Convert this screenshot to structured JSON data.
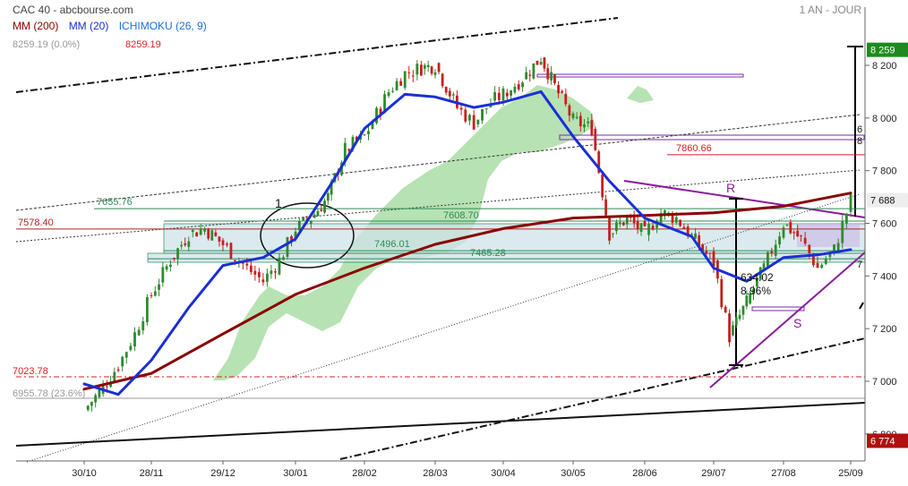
{
  "header": {
    "title": "CAC 40 - abcbourse.com",
    "timeframe": "1 AN - JOUR",
    "indicators": [
      {
        "label": "MM (200)",
        "color": "#8b0000"
      },
      {
        "label": "MM (20)",
        "color": "#1a2fd6"
      },
      {
        "label": "ICHIMOKU (26, 9)",
        "color": "#1a6fd6"
      }
    ],
    "ref_left": "8259.19  (0.0%)",
    "ref_red": "8259.19"
  },
  "chart_data": {
    "type": "candlestick",
    "x_ticks": [
      "30/10",
      "28/11",
      "29/12",
      "30/01",
      "28/02",
      "28/03",
      "30/04",
      "30/05",
      "28/06",
      "29/07",
      "27/08",
      "25/09"
    ],
    "y_ticks": [
      6800,
      7000,
      7200,
      7400,
      7600,
      7800,
      8000,
      8200
    ],
    "y_tick_labels": [
      "6 800",
      "7 000",
      "7 200",
      "7 400",
      "7 600",
      "7 800",
      "8 000",
      "8 200"
    ],
    "ylim": [
      6700,
      8300
    ],
    "price_badges": {
      "top": "8 259",
      "last": "7 688",
      "low": "6 774"
    },
    "price_series": [
      [
        "30/10",
        6890
      ],
      [
        "06/11",
        6960
      ],
      [
        "14/11",
        7060
      ],
      [
        "21/11",
        7180
      ],
      [
        "28/11",
        7330
      ],
      [
        "06/12",
        7460
      ],
      [
        "14/12",
        7560
      ],
      [
        "21/12",
        7580
      ],
      [
        "29/12",
        7520
      ],
      [
        "09/01",
        7430
      ],
      [
        "16/01",
        7380
      ],
      [
        "23/01",
        7460
      ],
      [
        "30/01",
        7580
      ],
      [
        "06/02",
        7620
      ],
      [
        "13/02",
        7700
      ],
      [
        "20/02",
        7880
      ],
      [
        "28/02",
        7930
      ],
      [
        "08/03",
        8100
      ],
      [
        "15/03",
        8170
      ],
      [
        "22/03",
        8190
      ],
      [
        "28/03",
        8200
      ],
      [
        "08/04",
        8040
      ],
      [
        "16/04",
        7980
      ],
      [
        "24/04",
        8060
      ],
      [
        "30/04",
        8090
      ],
      [
        "08/05",
        8150
      ],
      [
        "16/05",
        8230
      ],
      [
        "22/05",
        8120
      ],
      [
        "30/05",
        7990
      ],
      [
        "07/06",
        7960
      ],
      [
        "14/06",
        7560
      ],
      [
        "21/06",
        7620
      ],
      [
        "28/06",
        7560
      ],
      [
        "05/07",
        7640
      ],
      [
        "12/07",
        7620
      ],
      [
        "19/07",
        7550
      ],
      [
        "29/07",
        7450
      ],
      [
        "05/08",
        7170
      ],
      [
        "12/08",
        7300
      ],
      [
        "19/08",
        7430
      ],
      [
        "27/08",
        7600
      ],
      [
        "04/09",
        7540
      ],
      [
        "11/09",
        7430
      ],
      [
        "18/09",
        7500
      ],
      [
        "25/09",
        7688
      ]
    ],
    "mm200": [
      [
        "30/10",
        6970
      ],
      [
        "28/11",
        7030
      ],
      [
        "29/12",
        7180
      ],
      [
        "30/01",
        7330
      ],
      [
        "28/02",
        7430
      ],
      [
        "28/03",
        7520
      ],
      [
        "30/04",
        7580
      ],
      [
        "30/05",
        7620
      ],
      [
        "28/06",
        7630
      ],
      [
        "29/07",
        7640
      ],
      [
        "27/08",
        7665
      ],
      [
        "25/09",
        7715
      ]
    ],
    "mm20": [
      [
        "30/10",
        6990
      ],
      [
        "14/11",
        6950
      ],
      [
        "28/11",
        7080
      ],
      [
        "14/12",
        7280
      ],
      [
        "29/12",
        7440
      ],
      [
        "16/01",
        7470
      ],
      [
        "30/01",
        7540
      ],
      [
        "15/02",
        7760
      ],
      [
        "28/02",
        7960
      ],
      [
        "15/03",
        8090
      ],
      [
        "28/03",
        8080
      ],
      [
        "16/04",
        8040
      ],
      [
        "30/04",
        8060
      ],
      [
        "16/05",
        8100
      ],
      [
        "30/05",
        7930
      ],
      [
        "14/06",
        7760
      ],
      [
        "28/06",
        7620
      ],
      [
        "19/07",
        7550
      ],
      [
        "29/07",
        7430
      ],
      [
        "12/08",
        7380
      ],
      [
        "27/08",
        7470
      ],
      [
        "11/09",
        7480
      ],
      [
        "25/09",
        7500
      ]
    ],
    "levels": [
      {
        "label": "7655.76",
        "value": 7655.76,
        "color": "#2e8b57"
      },
      {
        "label": "7578.40",
        "value": 7578.4,
        "color": "#b22222"
      },
      {
        "label": "7608.70",
        "value": 7608.7,
        "color": "#2e8b57"
      },
      {
        "label": "7496.01",
        "value": 7496.01,
        "color": "#2e8b57"
      },
      {
        "label": "7465.28",
        "value": 7465.28,
        "color": "#2e8b57"
      },
      {
        "label": "7860.66",
        "value": 7860.66,
        "color": "#d62020"
      }
    ],
    "annotations": {
      "wave_1": "1",
      "resistance_R": "R",
      "support_S": "S",
      "move_value": "634.02",
      "move_pct": "8.96%",
      "fib_red": "7023.78",
      "fib_grey": "6955.78 (23.6%)",
      "right_small_6": "6",
      "right_small_8": "8",
      "right_small_7": "7"
    }
  }
}
